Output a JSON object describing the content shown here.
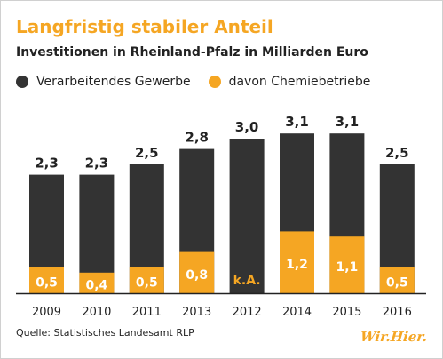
{
  "title": "Langfristig stabiler Anteil",
  "subtitle": "Investitionen in Rheinland-Pfalz in Milliarden Euro",
  "legend": [
    {
      "label": "Verarbeitendes Gewerbe",
      "color": "#333333"
    },
    {
      "label": "davon Chemiebetriebe",
      "color": "#f5a623"
    }
  ],
  "source": "Quelle: Statistisches Landesamt RLP",
  "logo": "Wir.Hier.",
  "colors": {
    "total": "#333333",
    "chemie": "#f5a623",
    "axis": "#222222"
  },
  "chart_data": {
    "type": "bar",
    "title": "Langfristig stabiler Anteil",
    "subtitle": "Investitionen in Rheinland-Pfalz in Milliarden Euro",
    "categories": [
      "2009",
      "2010",
      "2011",
      "2013",
      "2012",
      "2014",
      "2015",
      "2016"
    ],
    "series": [
      {
        "name": "Verarbeitendes Gewerbe",
        "values": [
          2.3,
          2.3,
          2.5,
          2.8,
          3.0,
          3.1,
          3.1,
          2.5
        ],
        "labels": [
          "2,3",
          "2,3",
          "2,5",
          "2,8",
          "3,0",
          "3,1",
          "3,1",
          "2,5"
        ]
      },
      {
        "name": "davon Chemiebetriebe",
        "values": [
          0.5,
          0.4,
          0.5,
          0.8,
          null,
          1.2,
          1.1,
          0.5
        ],
        "labels": [
          "0,5",
          "0,4",
          "0,5",
          "0,8",
          "k.A.",
          "1,2",
          "1,1",
          "0,5"
        ]
      }
    ],
    "overlay": true,
    "ylim": [
      0,
      3.2
    ],
    "grid": false,
    "legend_position": "top-left"
  }
}
